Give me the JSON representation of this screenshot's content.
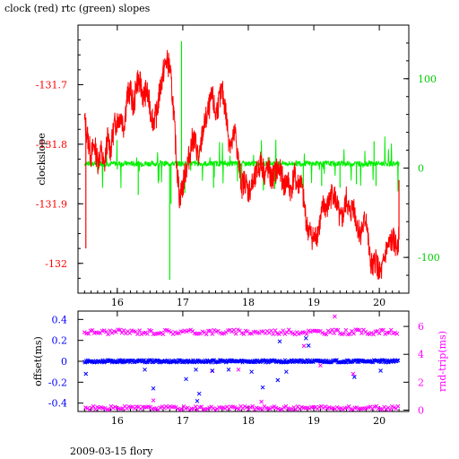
{
  "title": "clock (red) rtc (green) slopes",
  "footer": "2009-03-15 flory",
  "colors": {
    "clock": "#ff0000",
    "rtc": "#00ee00",
    "offset": "#0000ff",
    "rndtrip": "#ff00ff",
    "axis": "#000000"
  },
  "chart_data": [
    {
      "type": "line",
      "panel": "top",
      "ylabel": "clockslope",
      "y2label": "",
      "xlim": [
        15.4,
        20.45
      ],
      "ylim": [
        -132.05,
        -131.6
      ],
      "y2lim": [
        -140,
        160
      ],
      "xticks": [
        16,
        17,
        18,
        19,
        20
      ],
      "xtick_labels": [
        "16",
        "17",
        "18",
        "19",
        "20"
      ],
      "yticks": [
        -131.7,
        -131.8,
        -131.9,
        -132
      ],
      "ytick_labels": [
        "-131.7",
        "-131.8",
        "-131.9",
        "-132"
      ],
      "y2ticks": [
        100,
        0,
        -100
      ],
      "y2tick_labels": [
        "100",
        "0",
        "-100"
      ],
      "series": [
        {
          "name": "clock",
          "axis": "left",
          "x": [
            15.5,
            15.55,
            15.6,
            15.65,
            15.7,
            15.75,
            15.8,
            15.85,
            15.9,
            15.95,
            16.0,
            16.05,
            16.1,
            16.15,
            16.2,
            16.25,
            16.3,
            16.35,
            16.4,
            16.45,
            16.5,
            16.55,
            16.6,
            16.65,
            16.7,
            16.75,
            16.8,
            16.85,
            16.9,
            16.95,
            17.0,
            17.05,
            17.1,
            17.15,
            17.2,
            17.25,
            17.3,
            17.35,
            17.4,
            17.45,
            17.5,
            17.55,
            17.6,
            17.65,
            17.7,
            17.75,
            17.8,
            17.85,
            17.9,
            17.95,
            18.0,
            18.05,
            18.1,
            18.15,
            18.2,
            18.25,
            18.3,
            18.35,
            18.4,
            18.45,
            18.5,
            18.55,
            18.6,
            18.65,
            18.7,
            18.75,
            18.8,
            18.85,
            18.9,
            18.95,
            19.0,
            19.05,
            19.1,
            19.15,
            19.2,
            19.25,
            19.3,
            19.35,
            19.4,
            19.45,
            19.5,
            19.55,
            19.6,
            19.65,
            19.7,
            19.75,
            19.8,
            19.85,
            19.9,
            19.95,
            20.0,
            20.05,
            20.1,
            20.15,
            20.2,
            20.25,
            20.3
          ],
          "y": [
            -131.76,
            -131.79,
            -131.82,
            -131.8,
            -131.83,
            -131.81,
            -131.84,
            -131.79,
            -131.81,
            -131.77,
            -131.76,
            -131.75,
            -131.77,
            -131.72,
            -131.71,
            -131.74,
            -131.69,
            -131.7,
            -131.72,
            -131.71,
            -131.74,
            -131.76,
            -131.75,
            -131.71,
            -131.68,
            -131.66,
            -131.67,
            -131.73,
            -131.82,
            -131.89,
            -131.87,
            -131.84,
            -131.82,
            -131.79,
            -131.8,
            -131.83,
            -131.78,
            -131.76,
            -131.74,
            -131.72,
            -131.75,
            -131.73,
            -131.71,
            -131.74,
            -131.79,
            -131.8,
            -131.78,
            -131.83,
            -131.87,
            -131.86,
            -131.88,
            -131.87,
            -131.86,
            -131.84,
            -131.83,
            -131.85,
            -131.84,
            -131.86,
            -131.85,
            -131.84,
            -131.85,
            -131.87,
            -131.86,
            -131.88,
            -131.85,
            -131.87,
            -131.86,
            -131.9,
            -131.94,
            -131.95,
            -131.96,
            -131.95,
            -131.93,
            -131.9,
            -131.91,
            -131.89,
            -131.88,
            -131.9,
            -131.93,
            -131.92,
            -131.89,
            -131.92,
            -131.9,
            -131.93,
            -131.95,
            -131.94,
            -131.92,
            -131.99,
            -132.01,
            -131.99,
            -132.02,
            -132.01,
            -131.98,
            -131.97,
            -131.96,
            -131.97,
            -131.96
          ],
          "color": "#ff0000"
        },
        {
          "name": "rtc",
          "axis": "right",
          "x": [
            15.5,
            15.6,
            15.7,
            15.8,
            15.9,
            16.0,
            16.1,
            16.2,
            16.3,
            16.4,
            16.5,
            16.6,
            16.7,
            16.8,
            16.9,
            17.0,
            17.1,
            17.2,
            17.3,
            17.4,
            17.5,
            17.6,
            17.7,
            17.8,
            17.9,
            18.0,
            18.1,
            18.2,
            18.3,
            18.4,
            18.5,
            18.6,
            18.7,
            18.8,
            18.9,
            19.0,
            19.1,
            19.2,
            19.3,
            19.4,
            19.5,
            19.6,
            19.7,
            19.8,
            19.9,
            20.0,
            20.1,
            20.2,
            20.3
          ],
          "y": [
            8,
            5,
            -15,
            8,
            -12,
            8,
            7,
            6,
            8,
            7,
            -25,
            8,
            5,
            -10,
            8,
            0,
            4,
            8,
            -15,
            8,
            6,
            8,
            7,
            -10,
            2,
            8,
            5,
            -15,
            8,
            6,
            -12,
            8,
            7,
            5,
            8,
            6,
            -15,
            8,
            5,
            -10,
            8,
            6,
            -20,
            8,
            5,
            7,
            8,
            6,
            8
          ],
          "spikes": [
            {
              "x": 16.32,
              "y": -30
            },
            {
              "x": 16.8,
              "y": -125
            },
            {
              "x": 16.82,
              "y": -40
            },
            {
              "x": 16.98,
              "y": 142
            },
            {
              "x": 17.03,
              "y": -28
            },
            {
              "x": 17.47,
              "y": -22
            },
            {
              "x": 17.9,
              "y": -20
            },
            {
              "x": 18.23,
              "y": -25
            },
            {
              "x": 18.42,
              "y": -18
            },
            {
              "x": 18.84,
              "y": -22
            },
            {
              "x": 19.12,
              "y": -20
            },
            {
              "x": 19.4,
              "y": -22
            },
            {
              "x": 19.65,
              "y": -18
            },
            {
              "x": 19.92,
              "y": 30
            },
            {
              "x": 19.95,
              "y": -20
            }
          ],
          "color": "#00ee00"
        }
      ]
    },
    {
      "type": "scatter",
      "panel": "bottom",
      "ylabel": "offset(ms)",
      "y2label": "rnd-trip(ms)",
      "xlim": [
        15.4,
        20.45
      ],
      "ylim": [
        -0.48,
        0.48
      ],
      "y2lim": [
        -0.1,
        7.1
      ],
      "xticks": [
        16,
        17,
        18,
        19,
        20
      ],
      "xtick_labels": [
        "16",
        "17",
        "18",
        "19",
        "20"
      ],
      "yticks": [
        0.4,
        0.2,
        0,
        -0.2,
        -0.4
      ],
      "ytick_labels": [
        "0.4",
        "0.2",
        "0",
        "-0.2",
        "-0.4"
      ],
      "y2ticks": [
        6,
        4,
        2,
        0
      ],
      "y2tick_labels": [
        "6",
        "4",
        "2",
        "0"
      ],
      "series": [
        {
          "name": "offset",
          "axis": "left",
          "baseline": 0.0,
          "outliers": [
            {
              "x": 15.52,
              "y": -0.12
            },
            {
              "x": 16.08,
              "y": 0.01
            },
            {
              "x": 16.42,
              "y": -0.08
            },
            {
              "x": 16.55,
              "y": -0.26
            },
            {
              "x": 17.05,
              "y": -0.17
            },
            {
              "x": 17.2,
              "y": -0.08
            },
            {
              "x": 17.22,
              "y": -0.38
            },
            {
              "x": 17.25,
              "y": -0.31
            },
            {
              "x": 17.45,
              "y": -0.09
            },
            {
              "x": 17.7,
              "y": -0.08
            },
            {
              "x": 18.05,
              "y": -0.1
            },
            {
              "x": 18.22,
              "y": -0.25
            },
            {
              "x": 18.45,
              "y": -0.18
            },
            {
              "x": 18.48,
              "y": 0.19
            },
            {
              "x": 18.58,
              "y": -0.1
            },
            {
              "x": 18.88,
              "y": 0.22
            },
            {
              "x": 18.92,
              "y": 0.15
            },
            {
              "x": 19.62,
              "y": -0.15
            },
            {
              "x": 20.02,
              "y": -0.09
            }
          ],
          "color": "#0000ff"
        },
        {
          "name": "rnd-trip",
          "axis": "right",
          "upper_level": 5.6,
          "lower_level": 0.15,
          "outliers": [
            {
              "x": 19.32,
              "y": 7.8
            },
            {
              "x": 17.45,
              "y": 2.8
            },
            {
              "x": 17.85,
              "y": 2.9
            },
            {
              "x": 18.85,
              "y": 4.6
            },
            {
              "x": 19.1,
              "y": 3.2
            },
            {
              "x": 19.6,
              "y": 2.6
            },
            {
              "x": 16.55,
              "y": 0.7
            },
            {
              "x": 18.2,
              "y": 0.6
            }
          ],
          "color": "#ff00ff"
        }
      ]
    }
  ]
}
